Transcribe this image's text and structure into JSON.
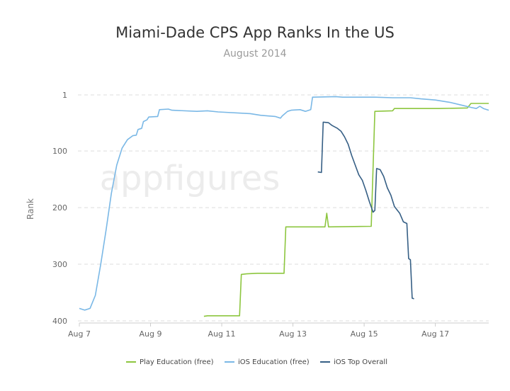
{
  "chart_data": {
    "type": "line",
    "title": "Miami-Dade CPS App Ranks In the US",
    "subtitle": "August 2014",
    "ylabel": "Rank",
    "xlabel": "",
    "watermark": "appfigures",
    "x_ticks": [
      "Aug 7",
      "Aug 9",
      "Aug 11",
      "Aug 13",
      "Aug 15",
      "Aug 17"
    ],
    "y_ticks": [
      1,
      100,
      200,
      300,
      400
    ],
    "ylim": [
      400,
      1
    ],
    "y_inverted": true,
    "grid": true,
    "legend_position": "bottom",
    "series": [
      {
        "name": "Play Education (free)",
        "color": "#8dc63f",
        "points": [
          [
            10.5,
            392
          ],
          [
            10.6,
            391
          ],
          [
            11.5,
            391
          ],
          [
            11.55,
            318
          ],
          [
            11.7,
            317
          ],
          [
            12.0,
            316
          ],
          [
            12.75,
            316
          ],
          [
            12.8,
            234
          ],
          [
            13.9,
            234
          ],
          [
            13.95,
            210
          ],
          [
            14.0,
            234
          ],
          [
            15.2,
            233
          ],
          [
            15.3,
            30
          ],
          [
            15.8,
            29
          ],
          [
            15.85,
            25
          ],
          [
            17.1,
            25
          ],
          [
            17.9,
            24
          ],
          [
            18.0,
            16
          ],
          [
            18.5,
            16
          ]
        ]
      },
      {
        "name": "iOS Education (free)",
        "color": "#7ab8e6",
        "points": [
          [
            7.0,
            378
          ],
          [
            7.15,
            381
          ],
          [
            7.3,
            378
          ],
          [
            7.45,
            355
          ],
          [
            7.6,
            300
          ],
          [
            7.75,
            240
          ],
          [
            7.9,
            175
          ],
          [
            8.05,
            125
          ],
          [
            8.2,
            95
          ],
          [
            8.35,
            80
          ],
          [
            8.5,
            73
          ],
          [
            8.6,
            72
          ],
          [
            8.65,
            62
          ],
          [
            8.75,
            60
          ],
          [
            8.8,
            48
          ],
          [
            8.9,
            45
          ],
          [
            8.95,
            40
          ],
          [
            9.2,
            39
          ],
          [
            9.25,
            27
          ],
          [
            9.5,
            26
          ],
          [
            9.6,
            28
          ],
          [
            10.3,
            30
          ],
          [
            10.6,
            29
          ],
          [
            10.9,
            31
          ],
          [
            11.8,
            34
          ],
          [
            12.1,
            37
          ],
          [
            12.5,
            39
          ],
          [
            12.65,
            42
          ],
          [
            12.7,
            38
          ],
          [
            12.85,
            30
          ],
          [
            12.95,
            28
          ],
          [
            13.2,
            27
          ],
          [
            13.35,
            30
          ],
          [
            13.5,
            27
          ],
          [
            13.55,
            5
          ],
          [
            14.2,
            4
          ],
          [
            14.4,
            5
          ],
          [
            15.3,
            5
          ],
          [
            15.8,
            6
          ],
          [
            16.3,
            6
          ],
          [
            16.6,
            8
          ],
          [
            17.0,
            10
          ],
          [
            17.4,
            14
          ],
          [
            17.8,
            20
          ],
          [
            18.0,
            23
          ],
          [
            18.15,
            25
          ],
          [
            18.25,
            21
          ],
          [
            18.35,
            25
          ],
          [
            18.5,
            28
          ]
        ]
      },
      {
        "name": "iOS Top Overall",
        "color": "#365f85",
        "points": [
          [
            13.7,
            137
          ],
          [
            13.8,
            138
          ],
          [
            13.85,
            49
          ],
          [
            14.0,
            50
          ],
          [
            14.1,
            55
          ],
          [
            14.25,
            60
          ],
          [
            14.35,
            65
          ],
          [
            14.45,
            75
          ],
          [
            14.55,
            88
          ],
          [
            14.65,
            108
          ],
          [
            14.75,
            125
          ],
          [
            14.85,
            142
          ],
          [
            14.95,
            152
          ],
          [
            15.05,
            170
          ],
          [
            15.15,
            190
          ],
          [
            15.25,
            208
          ],
          [
            15.3,
            205
          ],
          [
            15.35,
            131
          ],
          [
            15.45,
            133
          ],
          [
            15.55,
            145
          ],
          [
            15.65,
            165
          ],
          [
            15.75,
            178
          ],
          [
            15.85,
            198
          ],
          [
            16.0,
            210
          ],
          [
            16.1,
            225
          ],
          [
            16.2,
            228
          ],
          [
            16.25,
            290
          ],
          [
            16.3,
            292
          ],
          [
            16.35,
            360
          ],
          [
            16.4,
            361
          ]
        ]
      }
    ]
  }
}
